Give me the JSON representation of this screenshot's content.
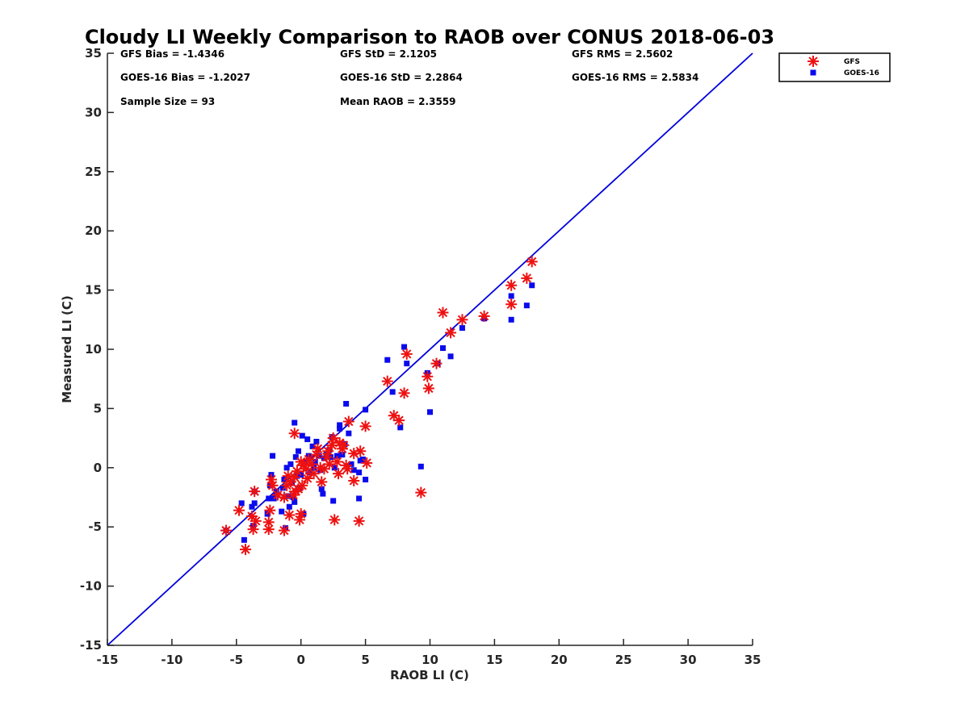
{
  "chart_data": {
    "type": "scatter",
    "title": "Cloudy LI Weekly Comparison to RAOB over CONUS 2018-06-03",
    "xlabel": "RAOB LI (C)",
    "ylabel": "Measured LI (C)",
    "xlim": [
      -15,
      35
    ],
    "ylim": [
      -15,
      35
    ],
    "xticks": [
      -15,
      -10,
      -5,
      0,
      5,
      10,
      15,
      20,
      25,
      30,
      35
    ],
    "yticks": [
      -15,
      -10,
      -5,
      0,
      5,
      10,
      15,
      20,
      25,
      30,
      35
    ],
    "grid": false,
    "legend_position": "outside top-right",
    "stats": [
      [
        "GFS Bias = -1.4346",
        "GFS StD = 2.1205",
        "GFS RMS = 2.5602"
      ],
      [
        "GOES-16 Bias = -1.2027",
        "GOES-16 StD = 2.2864",
        "GOES-16 RMS = 2.5834"
      ],
      [
        "Sample Size = 93",
        "Mean RAOB = 2.3559",
        ""
      ]
    ],
    "reference_line": {
      "type": "one-to-one",
      "from": [
        -15,
        -15
      ],
      "to": [
        35,
        35
      ],
      "color": "#0000dd"
    },
    "series": [
      {
        "name": "GFS",
        "marker": "asterisk",
        "color": "#ee1111",
        "points": [
          [
            -5.8,
            -5.3
          ],
          [
            -4.8,
            -3.6
          ],
          [
            -4.3,
            -6.9
          ],
          [
            -3.8,
            -4.1
          ],
          [
            -3.7,
            -5.2
          ],
          [
            -3.6,
            -2.0
          ],
          [
            -3.5,
            -4.5
          ],
          [
            -2.5,
            -5.2
          ],
          [
            -2.5,
            -4.6
          ],
          [
            -2.4,
            -3.6
          ],
          [
            -2.3,
            -1.0
          ],
          [
            -2.2,
            -1.5
          ],
          [
            -1.8,
            -2.3
          ],
          [
            -1.3,
            -2.5
          ],
          [
            -1.3,
            -5.3
          ],
          [
            -1.1,
            -1.5
          ],
          [
            -1.0,
            -0.7
          ],
          [
            -0.9,
            -4.0
          ],
          [
            -0.8,
            -1.2
          ],
          [
            -0.6,
            -2.3
          ],
          [
            -0.5,
            -0.8
          ],
          [
            -0.4,
            -2.0
          ],
          [
            -0.3,
            -0.3
          ],
          [
            -0.2,
            -1.8
          ],
          [
            -0.1,
            -4.4
          ],
          [
            0.0,
            0.5
          ],
          [
            0.1,
            -1.5
          ],
          [
            0.2,
            0.2
          ],
          [
            0.4,
            -0.1
          ],
          [
            0.5,
            -0.9
          ],
          [
            0.6,
            0.7
          ],
          [
            0.8,
            0.3
          ],
          [
            1.0,
            -0.5
          ],
          [
            1.2,
            1.1
          ],
          [
            1.3,
            1.6
          ],
          [
            1.5,
            0.0
          ],
          [
            1.6,
            -1.2
          ],
          [
            1.8,
            -0.1
          ],
          [
            2.0,
            0.9
          ],
          [
            2.1,
            1.4
          ],
          [
            2.2,
            0.3
          ],
          [
            2.4,
            1.9
          ],
          [
            2.5,
            2.5
          ],
          [
            2.6,
            -4.4
          ],
          [
            2.8,
            0.5
          ],
          [
            2.9,
            -0.5
          ],
          [
            3.0,
            2.1
          ],
          [
            3.2,
            1.6
          ],
          [
            3.3,
            1.9
          ],
          [
            3.5,
            0.2
          ],
          [
            3.6,
            -0.1
          ],
          [
            3.7,
            3.9
          ],
          [
            4.1,
            1.2
          ],
          [
            4.1,
            -1.1
          ],
          [
            4.5,
            -4.5
          ],
          [
            4.6,
            1.4
          ],
          [
            5.0,
            3.5
          ],
          [
            5.1,
            0.4
          ],
          [
            -0.5,
            2.9
          ],
          [
            0.0,
            -3.9
          ],
          [
            6.7,
            7.3
          ],
          [
            7.2,
            4.4
          ],
          [
            7.6,
            4.0
          ],
          [
            8.0,
            6.3
          ],
          [
            8.2,
            9.6
          ],
          [
            9.3,
            -2.1
          ],
          [
            9.8,
            7.7
          ],
          [
            9.9,
            6.7
          ],
          [
            10.5,
            8.8
          ],
          [
            11.0,
            13.1
          ],
          [
            11.6,
            11.4
          ],
          [
            12.5,
            12.5
          ],
          [
            14.2,
            12.8
          ],
          [
            16.3,
            15.4
          ],
          [
            16.3,
            13.8
          ],
          [
            17.5,
            16.0
          ],
          [
            17.9,
            17.4
          ]
        ]
      },
      {
        "name": "GOES-16",
        "marker": "square",
        "color": "#0a0aee",
        "points": [
          [
            -5.8,
            -5.3
          ],
          [
            -4.6,
            -3.0
          ],
          [
            -4.4,
            -6.1
          ],
          [
            -3.8,
            -3.3
          ],
          [
            -3.7,
            -4.9
          ],
          [
            -3.6,
            -3.0
          ],
          [
            -3.6,
            -2.0
          ],
          [
            -2.6,
            -3.9
          ],
          [
            -2.5,
            -2.6
          ],
          [
            -2.4,
            -1.5
          ],
          [
            -2.3,
            -0.6
          ],
          [
            -2.2,
            1.0
          ],
          [
            -2.1,
            -2.6
          ],
          [
            -1.9,
            -2.0
          ],
          [
            -1.5,
            -3.7
          ],
          [
            -1.4,
            -1.7
          ],
          [
            -1.3,
            -1.0
          ],
          [
            -1.2,
            -5.1
          ],
          [
            -1.1,
            0.0
          ],
          [
            -1.0,
            -2.4
          ],
          [
            -0.9,
            -3.3
          ],
          [
            -0.8,
            0.3
          ],
          [
            -0.7,
            -1.3
          ],
          [
            -0.6,
            -2.5
          ],
          [
            -0.5,
            -2.9
          ],
          [
            -0.4,
            0.9
          ],
          [
            -0.3,
            -0.7
          ],
          [
            -0.2,
            1.4
          ],
          [
            -0.1,
            -1.7
          ],
          [
            0.0,
            -0.6
          ],
          [
            0.1,
            2.7
          ],
          [
            0.2,
            -3.9
          ],
          [
            0.3,
            0.4
          ],
          [
            0.5,
            2.4
          ],
          [
            0.6,
            1.0
          ],
          [
            0.7,
            -0.4
          ],
          [
            0.9,
            1.8
          ],
          [
            1.0,
            0.0
          ],
          [
            1.1,
            0.5
          ],
          [
            1.2,
            2.2
          ],
          [
            1.4,
            1.0
          ],
          [
            1.5,
            -0.2
          ],
          [
            1.6,
            -1.8
          ],
          [
            1.7,
            -2.2
          ],
          [
            1.8,
            0.8
          ],
          [
            2.0,
            1.2
          ],
          [
            2.2,
            1.5
          ],
          [
            2.3,
            0.9
          ],
          [
            2.4,
            2.6
          ],
          [
            2.5,
            -2.8
          ],
          [
            2.6,
            0.0
          ],
          [
            2.8,
            1.0
          ],
          [
            3.0,
            3.3
          ],
          [
            3.0,
            3.6
          ],
          [
            3.2,
            1.1
          ],
          [
            3.4,
            2.0
          ],
          [
            3.5,
            5.4
          ],
          [
            3.7,
            2.9
          ],
          [
            3.9,
            0.3
          ],
          [
            4.1,
            -0.2
          ],
          [
            4.5,
            -2.6
          ],
          [
            4.6,
            0.6
          ],
          [
            4.8,
            0.7
          ],
          [
            5.0,
            -1.0
          ],
          [
            5.0,
            4.9
          ],
          [
            -0.5,
            3.8
          ],
          [
            4.5,
            -0.4
          ],
          [
            6.7,
            9.1
          ],
          [
            7.1,
            6.4
          ],
          [
            7.7,
            3.4
          ],
          [
            8.0,
            10.2
          ],
          [
            8.2,
            8.8
          ],
          [
            9.3,
            0.1
          ],
          [
            9.8,
            8.0
          ],
          [
            10.0,
            4.7
          ],
          [
            10.6,
            8.8
          ],
          [
            11.0,
            10.1
          ],
          [
            11.6,
            9.4
          ],
          [
            12.5,
            11.8
          ],
          [
            14.2,
            12.6
          ],
          [
            16.3,
            14.5
          ],
          [
            16.3,
            12.5
          ],
          [
            17.5,
            13.7
          ],
          [
            17.9,
            15.4
          ]
        ]
      }
    ]
  }
}
